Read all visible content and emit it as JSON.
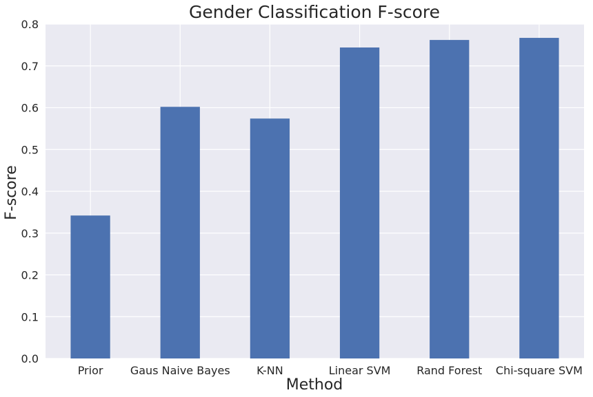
{
  "chart_data": {
    "type": "bar",
    "title": "Gender Classification F-score",
    "xlabel": "Method",
    "ylabel": "F-score",
    "categories": [
      "Prior",
      "Gaus Naive Bayes",
      "K-NN",
      "Linear SVM",
      "Rand Forest",
      "Chi-square SVM"
    ],
    "values": [
      0.342,
      0.602,
      0.574,
      0.744,
      0.762,
      0.767
    ],
    "ylim": [
      0,
      0.8
    ],
    "yticks": [
      "0.0",
      "0.1",
      "0.2",
      "0.3",
      "0.4",
      "0.5",
      "0.6",
      "0.7",
      "0.8"
    ],
    "grid": true,
    "legend": "none",
    "colors": {
      "bar": "#4c72b0",
      "background": "#eaeaf2",
      "grid": "#ffffff",
      "text": "#262626"
    }
  }
}
